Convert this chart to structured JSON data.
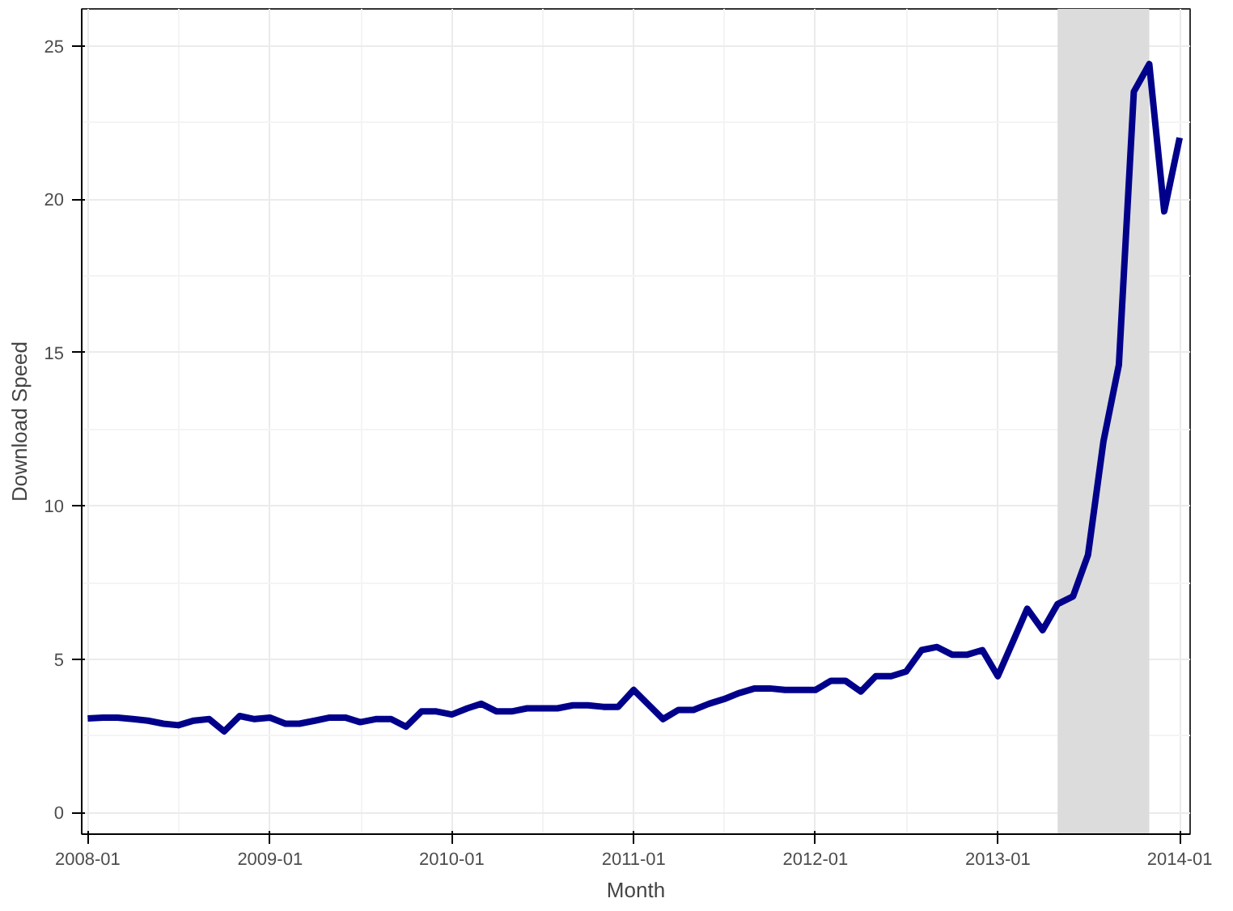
{
  "chart_data": {
    "type": "line",
    "xlabel": "Month",
    "ylabel": "Download Speed",
    "x": [
      "2008-01",
      "2008-02",
      "2008-03",
      "2008-04",
      "2008-05",
      "2008-06",
      "2008-07",
      "2008-08",
      "2008-09",
      "2008-10",
      "2008-11",
      "2008-12",
      "2009-01",
      "2009-02",
      "2009-03",
      "2009-04",
      "2009-05",
      "2009-06",
      "2009-07",
      "2009-08",
      "2009-09",
      "2009-10",
      "2009-11",
      "2009-12",
      "2010-01",
      "2010-02",
      "2010-03",
      "2010-04",
      "2010-05",
      "2010-06",
      "2010-07",
      "2010-08",
      "2010-09",
      "2010-10",
      "2010-11",
      "2010-12",
      "2011-01",
      "2011-02",
      "2011-03",
      "2011-04",
      "2011-05",
      "2011-06",
      "2011-07",
      "2011-08",
      "2011-09",
      "2011-10",
      "2011-11",
      "2011-12",
      "2012-01",
      "2012-02",
      "2012-03",
      "2012-04",
      "2012-05",
      "2012-06",
      "2012-07",
      "2012-08",
      "2012-09",
      "2012-10",
      "2012-11",
      "2012-12",
      "2013-01",
      "2013-02",
      "2013-03",
      "2013-04",
      "2013-05",
      "2013-06",
      "2013-07",
      "2013-08",
      "2013-09",
      "2013-10",
      "2013-11",
      "2013-12",
      "2014-01"
    ],
    "series": [
      {
        "color": "#00008b",
        "values": [
          3.07,
          3.1,
          3.1,
          3.05,
          3.0,
          2.9,
          2.85,
          3.0,
          3.05,
          2.65,
          3.15,
          3.05,
          3.1,
          2.9,
          2.9,
          3.0,
          3.1,
          3.1,
          2.95,
          3.05,
          3.05,
          2.8,
          3.3,
          3.3,
          3.2,
          3.4,
          3.55,
          3.3,
          3.3,
          3.4,
          3.4,
          3.4,
          3.5,
          3.5,
          3.45,
          3.45,
          4.0,
          3.5,
          3.05,
          3.35,
          3.35,
          3.55,
          3.7,
          3.9,
          4.05,
          4.05,
          4.0,
          4.0,
          4.0,
          4.3,
          4.3,
          3.95,
          4.45,
          4.45,
          4.6,
          5.3,
          5.4,
          5.15,
          5.15,
          5.3,
          4.45,
          5.6,
          6.65,
          5.95,
          6.8,
          7.05,
          8.4,
          12.1,
          14.6,
          23.5,
          24.4,
          19.6,
          22.0
        ]
      }
    ],
    "xlim": [
      "2007-12-20",
      "2014-01-22"
    ],
    "xticks": [
      "2008-01",
      "2009-01",
      "2010-01",
      "2011-01",
      "2012-01",
      "2013-01",
      "2014-01"
    ],
    "ylim": [
      -0.7,
      26.2
    ],
    "yticks": [
      0,
      5,
      10,
      15,
      20,
      25
    ],
    "bands": [
      {
        "axis": "x",
        "from": "2013-05",
        "to": "2013-11",
        "color": "#dcdcdc"
      }
    ],
    "grid": true,
    "line_style": "solid",
    "marker": "none"
  }
}
